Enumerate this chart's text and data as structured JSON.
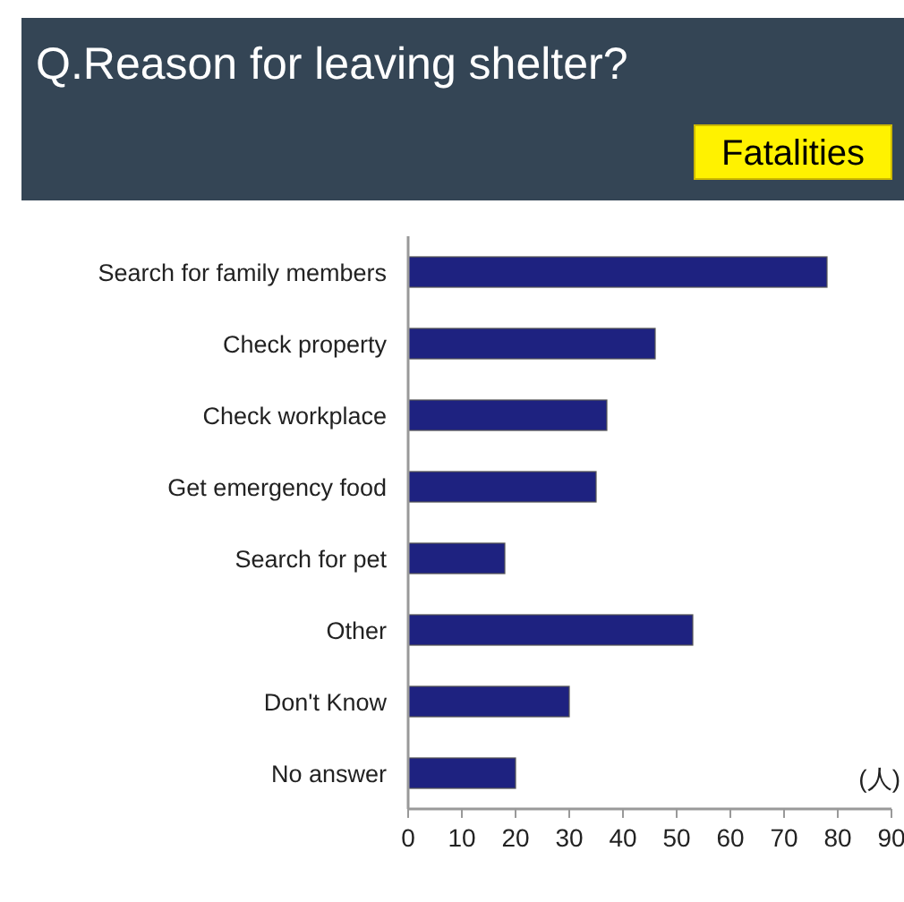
{
  "chart_data": {
    "type": "bar",
    "orientation": "horizontal",
    "title": "Q.Reason for leaving shelter?",
    "subtitle": "Fatalities",
    "xlabel": "(人)",
    "categories": [
      "Search for family members",
      "Check property",
      "Check workplace",
      "Get emergency food",
      "Search for pet",
      "Other",
      "Don't Know",
      "No answer"
    ],
    "values": [
      78,
      46,
      37,
      35,
      18,
      53,
      30,
      20
    ],
    "color": "#1e2280",
    "xlim": [
      0,
      90
    ],
    "xticks": [
      0,
      10,
      20,
      30,
      40,
      50,
      60,
      70,
      80,
      90
    ]
  }
}
